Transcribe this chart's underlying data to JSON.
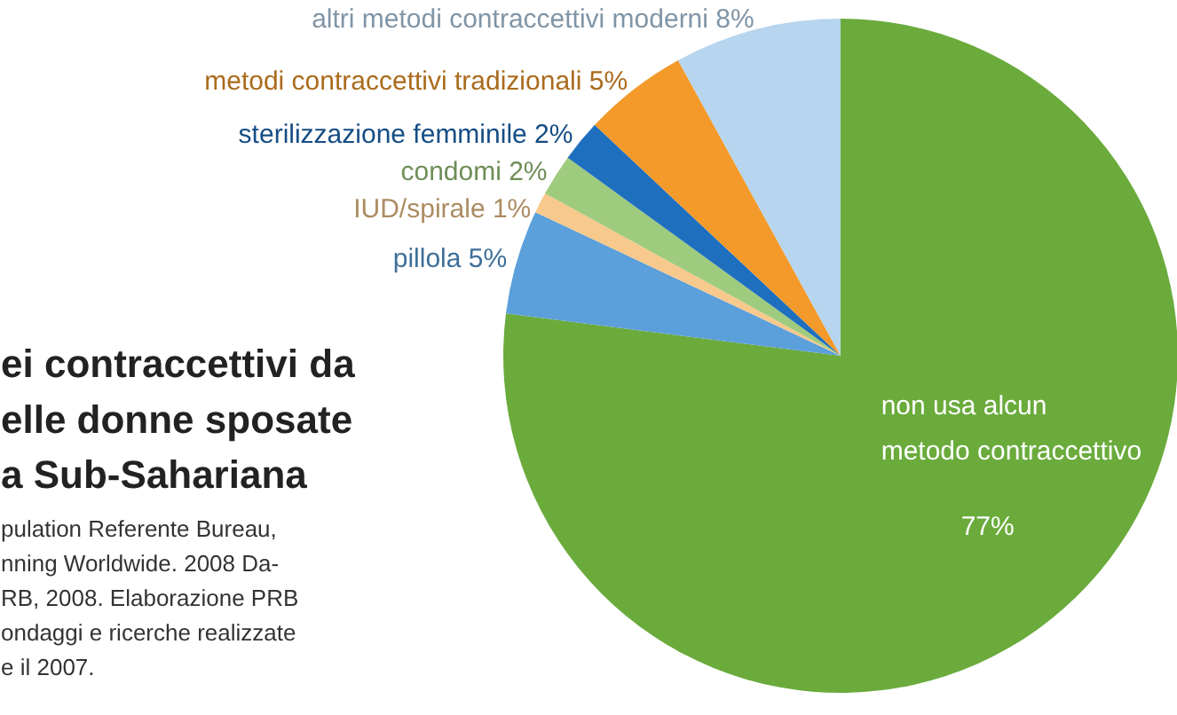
{
  "chart_data": {
    "type": "pie",
    "title": "ei contraccettivi da\nelle donne sposate\na Sub-Sahariana",
    "annotations": [
      "pulation Referente Bureau,\nnning Worldwide. 2008 Da-\nRB, 2008. Elaborazione PRB\nondaggi e ricerche realizzate\ne il 2007."
    ],
    "categories": [
      "non usa alcun\nmetodo contraccettivo",
      "pillola",
      "IUD/spirale",
      "condomi",
      "sterilizzazione femminile",
      "metodi contraccettivi tradizionali",
      "altri metodi contraccettivi moderni"
    ],
    "values": [
      77,
      5,
      1,
      2,
      2,
      5,
      8
    ],
    "value_labels": [
      "77%",
      "5%",
      "1%",
      "2%",
      "2%",
      "5%",
      "8%"
    ],
    "colors": [
      "#6aab3c",
      "#5b9fdb",
      "#f7c98c",
      "#9fcb7e",
      "#1f6fbf",
      "#f39a2a",
      "#b7d5ee"
    ]
  }
}
